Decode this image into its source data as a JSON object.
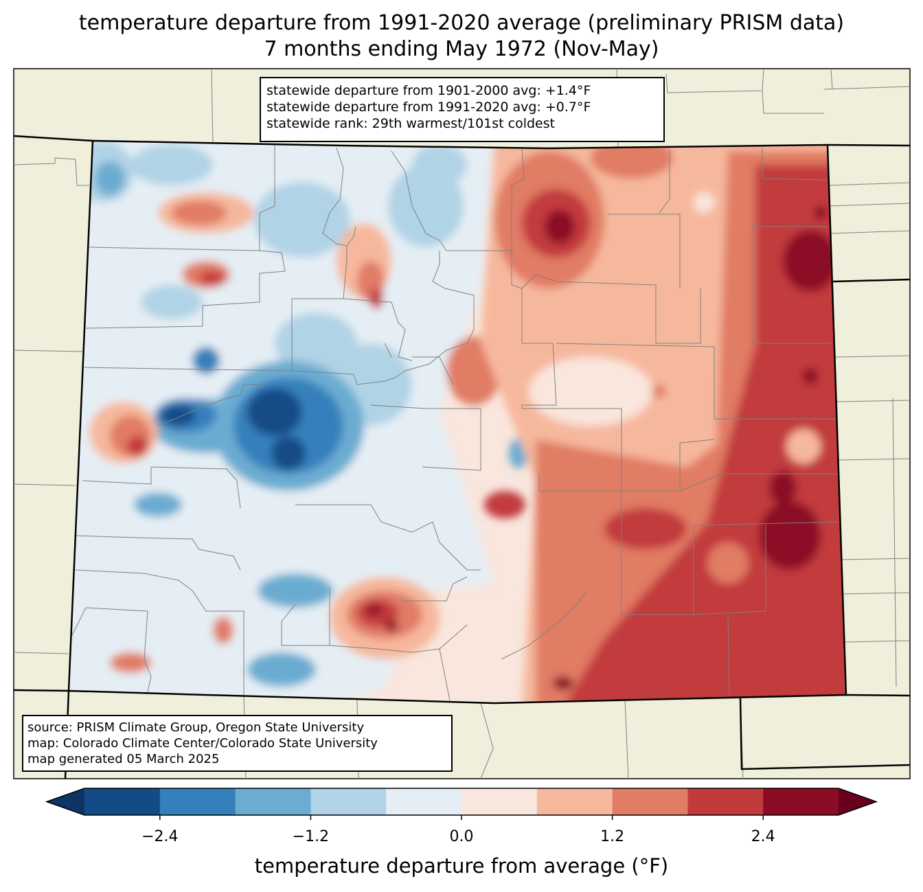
{
  "title": {
    "line1": "temperature departure from 1991-2020 average (preliminary PRISM data)",
    "line2": "7 months ending May 1972 (Nov-May)"
  },
  "stats": {
    "line1": "statewide departure from 1901-2000 avg: +1.4°F",
    "line2": "statewide departure from 1991-2020 avg: +0.7°F",
    "line3": "statewide rank: 29th warmest/101st coldest"
  },
  "source": {
    "line1": "source: PRISM Climate Group, Oregon State University",
    "line2": "map: Colorado Climate Center/Colorado State University",
    "line3": "map generated 05 March 2025"
  },
  "colorbar": {
    "label": "temperature departure from average (°F)",
    "ticks": [
      "−2.4",
      "−1.2",
      "0.0",
      "1.2",
      "2.4"
    ],
    "tick_values": [
      -2.4,
      -1.2,
      0.0,
      1.2,
      2.4
    ],
    "range": [
      -3.0,
      3.0
    ],
    "step": 0.6,
    "colors": [
      "#134b87",
      "#3480bc",
      "#6bacd1",
      "#b0d3e6",
      "#e5eef4",
      "#f9e6dd",
      "#f6b89c",
      "#e17c65",
      "#c23b3c",
      "#8c0c25"
    ],
    "under_color": "#0c3465",
    "over_color": "#6a001e"
  },
  "map": {
    "land_color": "#efefdc",
    "border_color": "#000000",
    "county_color": "#808080"
  }
}
